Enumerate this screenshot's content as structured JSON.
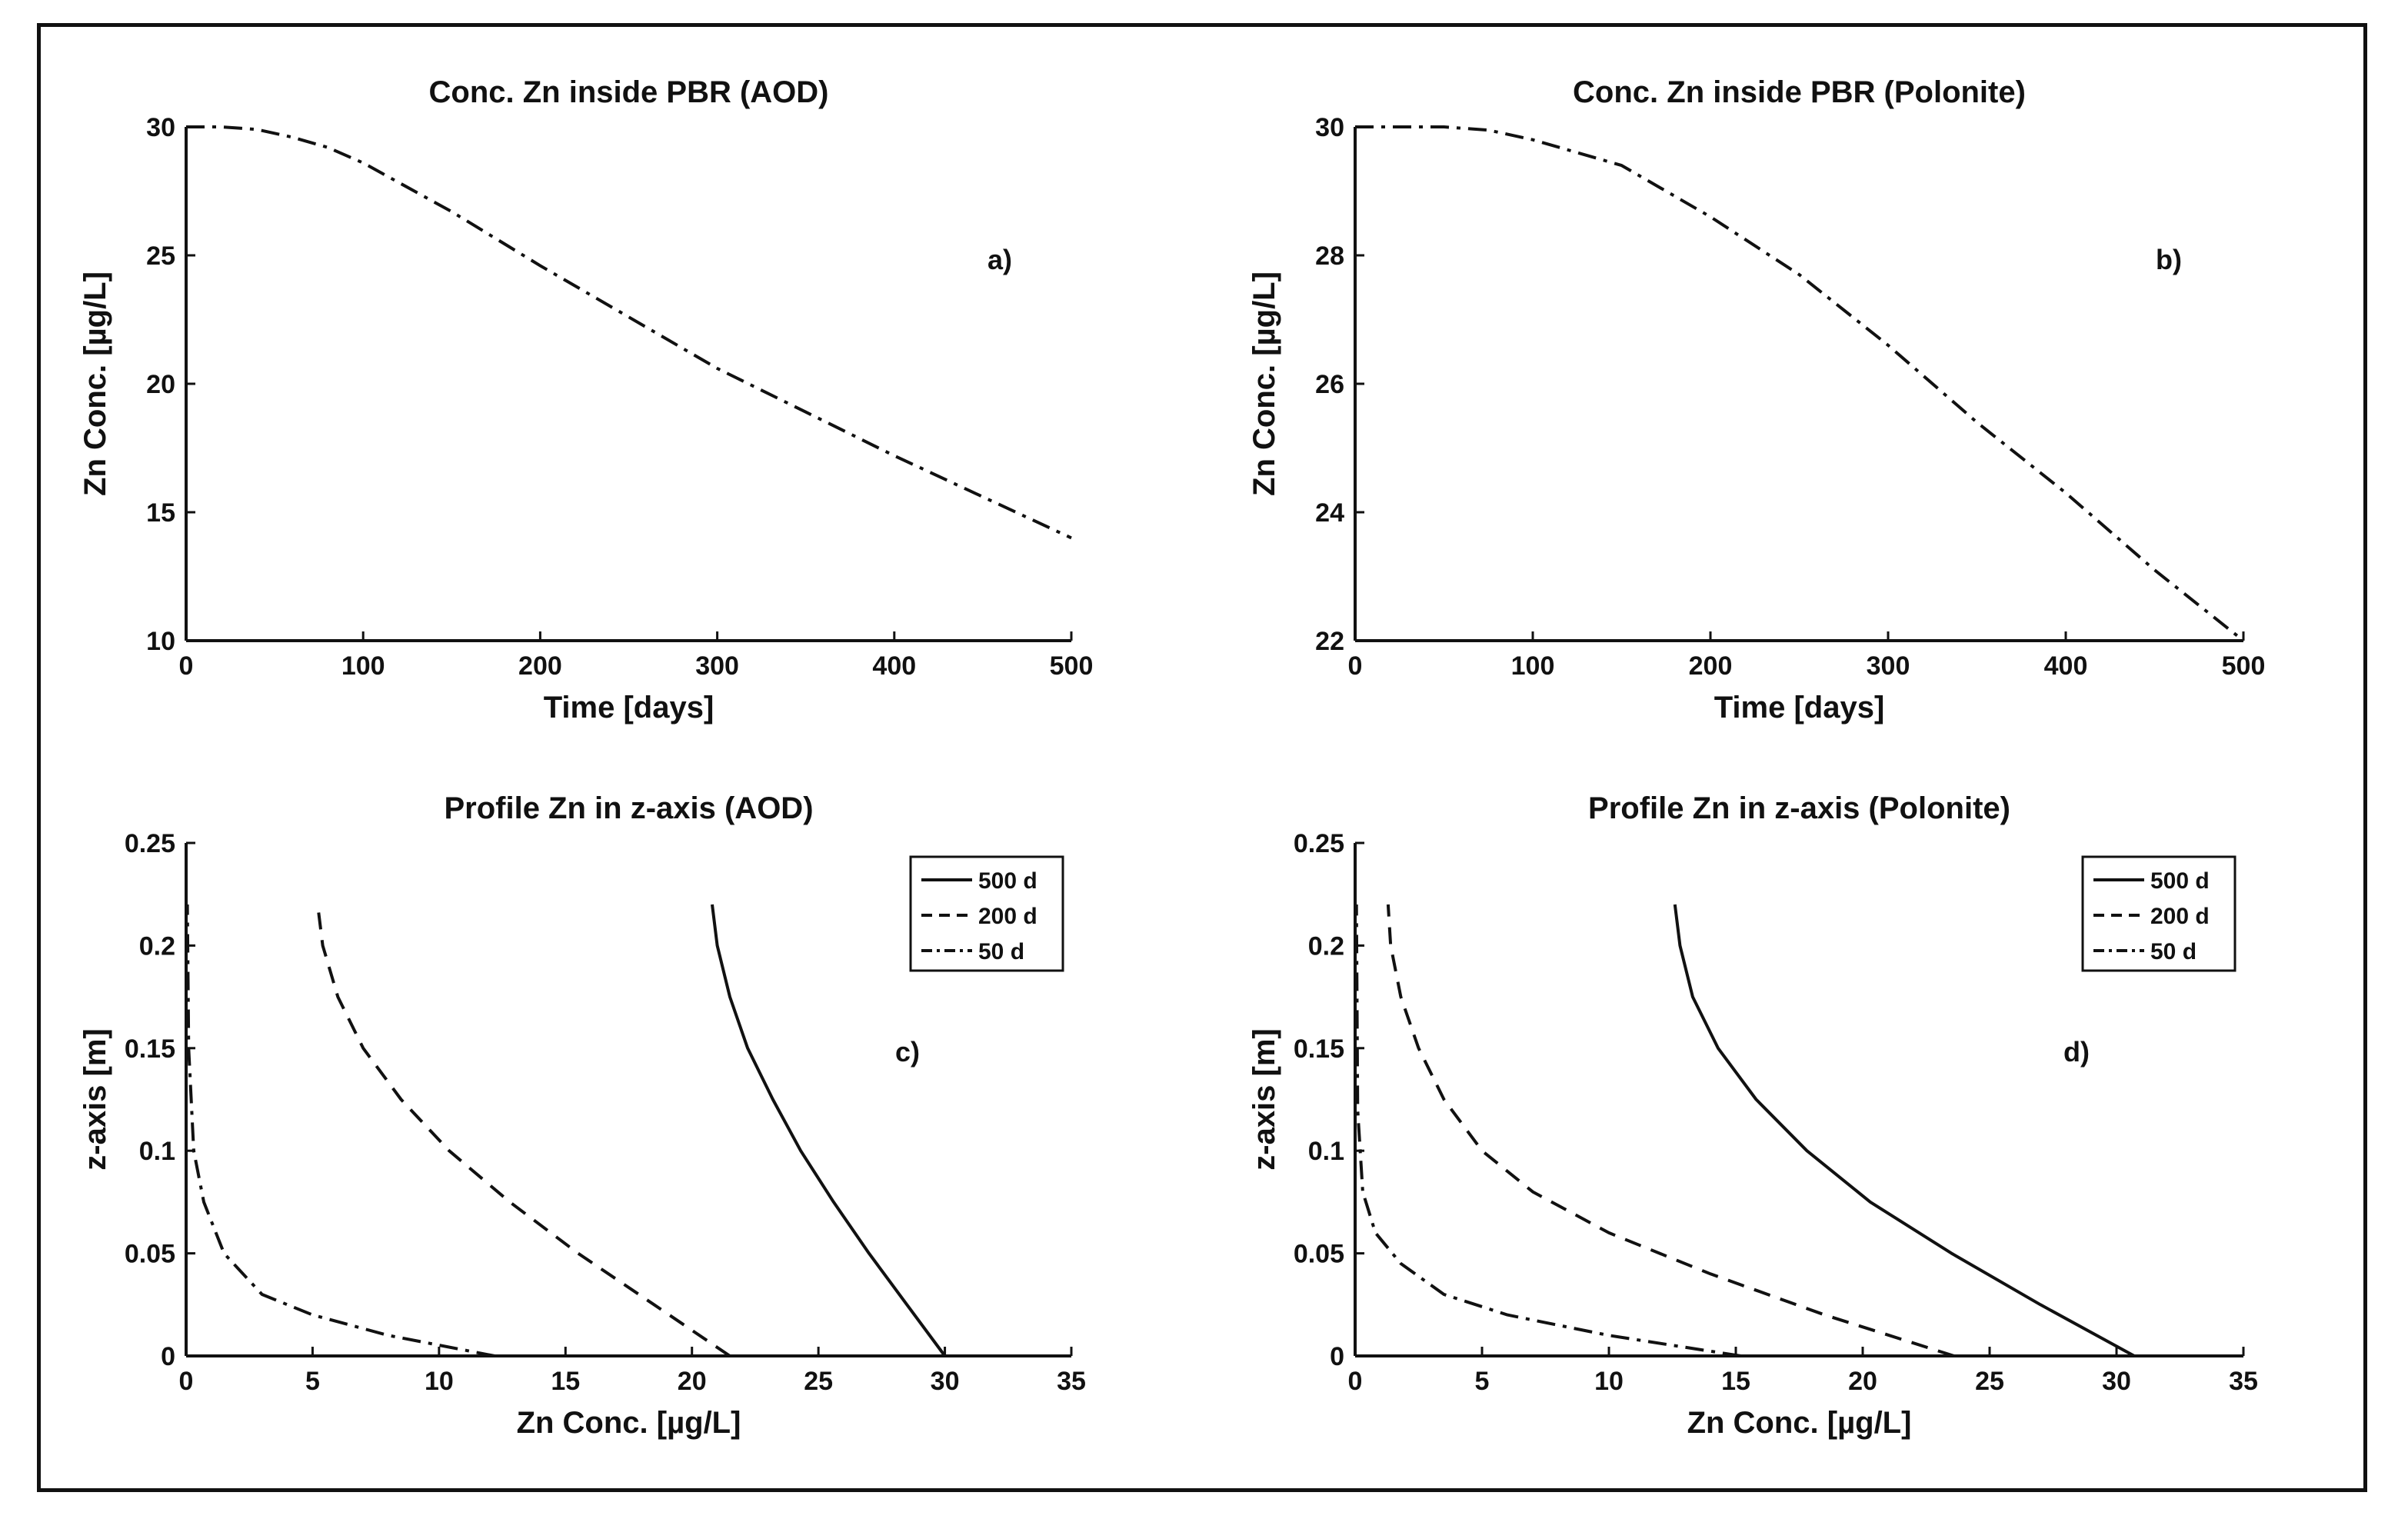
{
  "chart_data": [
    {
      "id": "a",
      "type": "line",
      "title": "Conc. Zn inside PBR (AOD)",
      "xlabel": "Time [days]",
      "ylabel": "Zn Conc. [µg/L]",
      "panel_label": "a)",
      "xlim": [
        0,
        500
      ],
      "ylim": [
        10,
        30
      ],
      "xticks": [
        0,
        100,
        200,
        300,
        400,
        500
      ],
      "yticks": [
        10,
        15,
        20,
        25,
        30
      ],
      "legend": null,
      "series": [
        {
          "name": "Zn conc.",
          "style": "dashdot",
          "points": [
            [
              0,
              30
            ],
            [
              20,
              30
            ],
            [
              40,
              29.9
            ],
            [
              60,
              29.6
            ],
            [
              80,
              29.2
            ],
            [
              100,
              28.6
            ],
            [
              150,
              26.7
            ],
            [
              200,
              24.6
            ],
            [
              250,
              22.6
            ],
            [
              300,
              20.6
            ],
            [
              350,
              18.9
            ],
            [
              400,
              17.2
            ],
            [
              450,
              15.6
            ],
            [
              500,
              14.0
            ]
          ]
        }
      ]
    },
    {
      "id": "b",
      "type": "line",
      "title": "Conc. Zn inside PBR (Polonite)",
      "xlabel": "Time [days]",
      "ylabel": "Zn Conc. [µg/L]",
      "panel_label": "b)",
      "xlim": [
        0,
        500
      ],
      "ylim": [
        22,
        30
      ],
      "xticks": [
        0,
        100,
        200,
        300,
        400,
        500
      ],
      "yticks": [
        22,
        24,
        26,
        28,
        30
      ],
      "legend": null,
      "series": [
        {
          "name": "Zn conc.",
          "style": "dashdot",
          "points": [
            [
              0,
              30
            ],
            [
              50,
              30
            ],
            [
              75,
              29.95
            ],
            [
              100,
              29.8
            ],
            [
              150,
              29.4
            ],
            [
              200,
              28.6
            ],
            [
              250,
              27.7
            ],
            [
              300,
              26.6
            ],
            [
              350,
              25.4
            ],
            [
              400,
              24.3
            ],
            [
              450,
              23.1
            ],
            [
              500,
              22.0
            ]
          ]
        }
      ]
    },
    {
      "id": "c",
      "type": "line",
      "title": "Profile Zn in z-axis (AOD)",
      "xlabel": "Zn Conc. [µg/L]",
      "ylabel": "z-axis [m]",
      "panel_label": "c)",
      "xlim": [
        0,
        35
      ],
      "ylim": [
        0,
        0.25
      ],
      "xticks": [
        0,
        5,
        10,
        15,
        20,
        25,
        30,
        35
      ],
      "yticks": [
        0,
        0.05,
        0.1,
        0.15,
        0.2,
        0.25
      ],
      "legend": [
        "500 d",
        "200 d",
        "50 d"
      ],
      "series": [
        {
          "name": "500 d",
          "style": "solid",
          "points": [
            [
              30,
              0
            ],
            [
              28.5,
              0.025
            ],
            [
              27.0,
              0.05
            ],
            [
              25.6,
              0.075
            ],
            [
              24.3,
              0.1
            ],
            [
              23.2,
              0.125
            ],
            [
              22.2,
              0.15
            ],
            [
              21.5,
              0.175
            ],
            [
              21.0,
              0.2
            ],
            [
              20.8,
              0.22
            ]
          ]
        },
        {
          "name": "200 d",
          "style": "dashed",
          "points": [
            [
              21.5,
              0
            ],
            [
              18.5,
              0.025
            ],
            [
              15.5,
              0.05
            ],
            [
              12.8,
              0.075
            ],
            [
              10.4,
              0.1
            ],
            [
              8.5,
              0.125
            ],
            [
              7.0,
              0.15
            ],
            [
              6.0,
              0.175
            ],
            [
              5.4,
              0.2
            ],
            [
              5.2,
              0.22
            ]
          ]
        },
        {
          "name": "50 d",
          "style": "dashdot",
          "points": [
            [
              12.2,
              0
            ],
            [
              8.0,
              0.01
            ],
            [
              5.0,
              0.02
            ],
            [
              3.0,
              0.03
            ],
            [
              1.5,
              0.05
            ],
            [
              0.7,
              0.075
            ],
            [
              0.3,
              0.1
            ],
            [
              0.1,
              0.15
            ],
            [
              0.05,
              0.22
            ]
          ]
        }
      ]
    },
    {
      "id": "d",
      "type": "line",
      "title": "Profile Zn in z-axis (Polonite)",
      "xlabel": "Zn Conc. [µg/L]",
      "ylabel": "z-axis [m]",
      "panel_label": "d)",
      "xlim": [
        0,
        35
      ],
      "ylim": [
        0,
        0.25
      ],
      "xticks": [
        0,
        5,
        10,
        15,
        20,
        25,
        30,
        35
      ],
      "yticks": [
        0,
        0.05,
        0.1,
        0.15,
        0.2,
        0.25
      ],
      "legend": [
        "500 d",
        "200 d",
        "50 d"
      ],
      "series": [
        {
          "name": "500 d",
          "style": "solid",
          "points": [
            [
              30.7,
              0
            ],
            [
              27.0,
              0.025
            ],
            [
              23.5,
              0.05
            ],
            [
              20.3,
              0.075
            ],
            [
              17.8,
              0.1
            ],
            [
              15.8,
              0.125
            ],
            [
              14.3,
              0.15
            ],
            [
              13.3,
              0.175
            ],
            [
              12.8,
              0.2
            ],
            [
              12.6,
              0.22
            ]
          ]
        },
        {
          "name": "200 d",
          "style": "dashed",
          "points": [
            [
              23.6,
              0
            ],
            [
              18.5,
              0.02
            ],
            [
              14.0,
              0.04
            ],
            [
              10.0,
              0.06
            ],
            [
              7.0,
              0.08
            ],
            [
              5.0,
              0.1
            ],
            [
              3.5,
              0.125
            ],
            [
              2.5,
              0.15
            ],
            [
              1.8,
              0.175
            ],
            [
              1.4,
              0.2
            ],
            [
              1.3,
              0.22
            ]
          ]
        },
        {
          "name": "50 d",
          "style": "dashdot",
          "points": [
            [
              15.2,
              0
            ],
            [
              10.0,
              0.01
            ],
            [
              6.0,
              0.02
            ],
            [
              3.5,
              0.03
            ],
            [
              1.8,
              0.045
            ],
            [
              0.8,
              0.06
            ],
            [
              0.3,
              0.08
            ],
            [
              0.1,
              0.12
            ],
            [
              0.05,
              0.22
            ]
          ]
        }
      ]
    }
  ]
}
